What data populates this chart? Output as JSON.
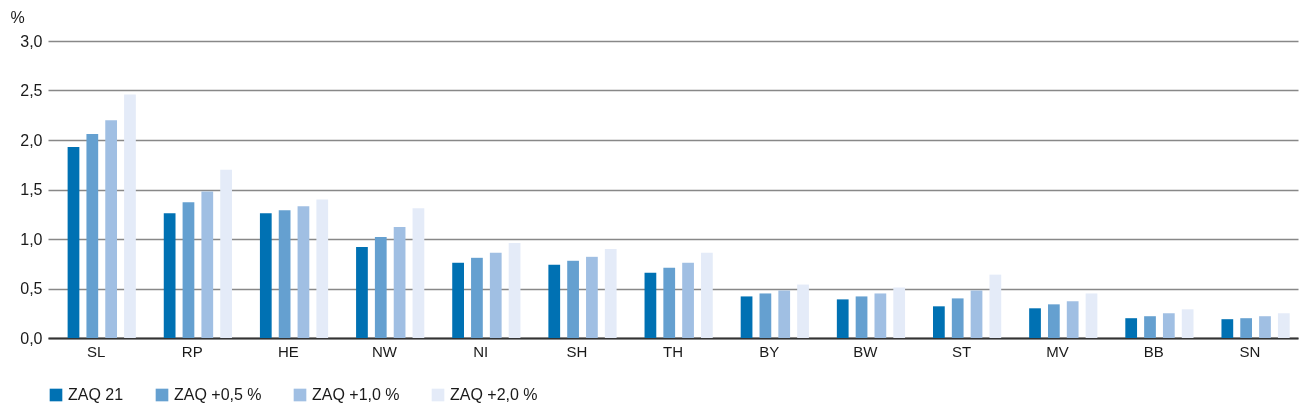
{
  "chart_data": {
    "type": "bar",
    "ylabel": "%",
    "categories": [
      "SL",
      "RP",
      "HE",
      "NW",
      "NI",
      "SH",
      "TH",
      "BY",
      "BW",
      "ST",
      "MV",
      "BB",
      "SN"
    ],
    "series": [
      {
        "name": "ZAQ 21",
        "color": "#0071b3",
        "values": [
          1.93,
          1.26,
          1.26,
          0.92,
          0.76,
          0.74,
          0.66,
          0.42,
          0.39,
          0.32,
          0.3,
          0.2,
          0.19
        ]
      },
      {
        "name": "ZAQ +0,5 %",
        "color": "#65a0d0",
        "values": [
          2.06,
          1.37,
          1.29,
          1.02,
          0.81,
          0.78,
          0.71,
          0.45,
          0.42,
          0.4,
          0.34,
          0.22,
          0.2
        ]
      },
      {
        "name": "ZAQ +1,0 %",
        "color": "#a0bfe3",
        "values": [
          2.2,
          1.48,
          1.33,
          1.12,
          0.86,
          0.82,
          0.76,
          0.48,
          0.45,
          0.48,
          0.37,
          0.25,
          0.22
        ]
      },
      {
        "name": "ZAQ +2,0 %",
        "color": "#e4ebf8",
        "values": [
          2.46,
          1.7,
          1.4,
          1.31,
          0.96,
          0.9,
          0.86,
          0.54,
          0.51,
          0.64,
          0.45,
          0.29,
          0.25
        ]
      }
    ],
    "ylim": [
      0,
      3
    ],
    "yticks": [
      {
        "value": 0,
        "label": "0,0"
      },
      {
        "value": 0.5,
        "label": "0,5"
      },
      {
        "value": 1,
        "label": "1,0"
      },
      {
        "value": 1.5,
        "label": "1,5"
      },
      {
        "value": 2,
        "label": "2,0"
      },
      {
        "value": 2.5,
        "label": "2,5"
      },
      {
        "value": 3,
        "label": "3,0"
      }
    ],
    "grid": "y",
    "legend": "bottom"
  }
}
